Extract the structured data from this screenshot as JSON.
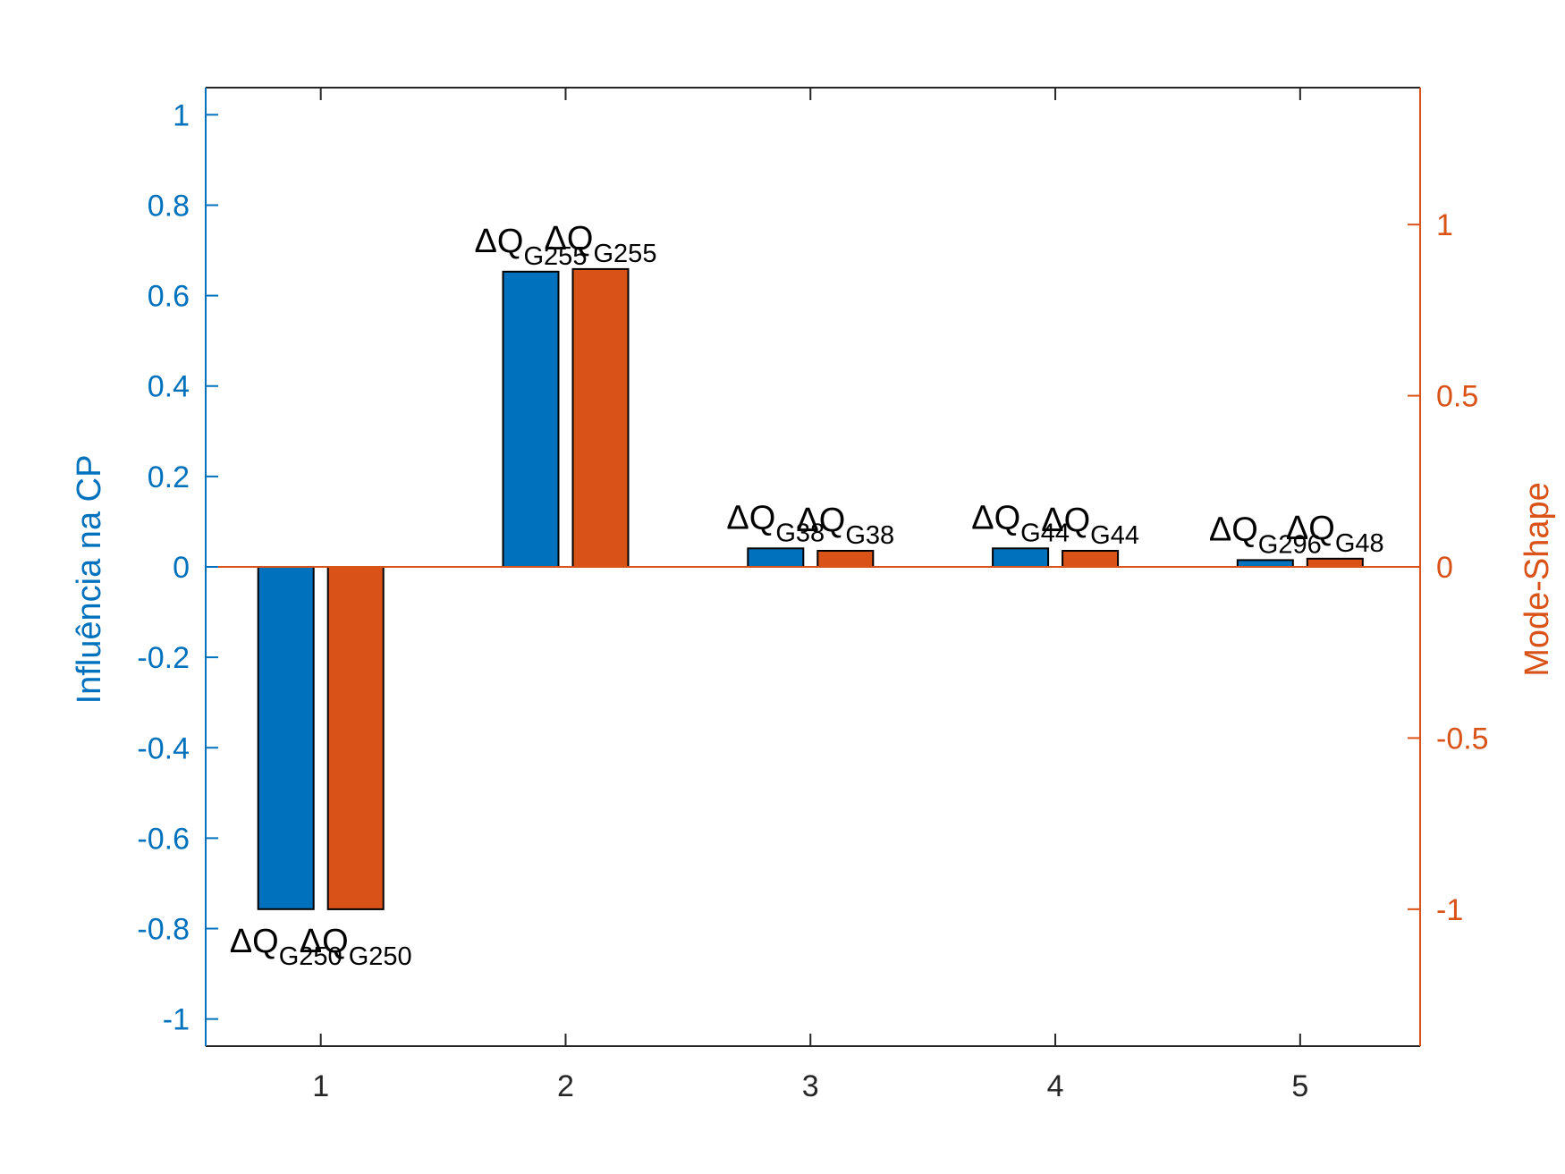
{
  "chart_data": {
    "type": "bar",
    "categories": [
      "1",
      "2",
      "3",
      "4",
      "5"
    ],
    "x": [
      1,
      2,
      3,
      4,
      5
    ],
    "xlim": [
      0.53,
      5.49
    ],
    "grid": false,
    "legend": "none",
    "left_axis": {
      "ylabel": "Influência na CP",
      "ylim": [
        -1.06,
        1.06
      ],
      "ticks": [
        -1,
        -0.8,
        -0.6,
        -0.4,
        -0.2,
        0,
        0.2,
        0.4,
        0.6,
        0.8,
        1
      ],
      "tick_labels": [
        "-1",
        "-0.8",
        "-0.6",
        "-0.4",
        "-0.2",
        "0",
        "0.2",
        "0.4",
        "0.6",
        "0.8",
        "1"
      ],
      "color": "#0072BD"
    },
    "right_axis": {
      "ylabel": "Mode-Shape",
      "ylim": [
        -1.4,
        1.4
      ],
      "ticks": [
        -1,
        -0.5,
        0,
        0.5,
        1
      ],
      "tick_labels": [
        "-1",
        "-0.5",
        "0",
        "0.5",
        "1"
      ],
      "color": "#D95319"
    },
    "series": [
      {
        "axis": "left",
        "color": "#0072BD",
        "values": [
          -0.757,
          0.653,
          0.041,
          0.041,
          0.015
        ],
        "labels": [
          {
            "main": "ΔQ",
            "sub": "G250"
          },
          {
            "main": "ΔQ",
            "sub": "G255"
          },
          {
            "main": "ΔQ",
            "sub": "G38"
          },
          {
            "main": "ΔQ",
            "sub": "G44"
          },
          {
            "main": "ΔQ",
            "sub": "G296"
          }
        ]
      },
      {
        "axis": "right",
        "color": "#D95319",
        "values": [
          -1.0,
          0.87,
          0.047,
          0.047,
          0.024
        ],
        "labels": [
          {
            "main": "ΔQ",
            "sub": "G250"
          },
          {
            "main": "ΔQ",
            "sub": "G255"
          },
          {
            "main": "ΔQ",
            "sub": "G38"
          },
          {
            "main": "ΔQ",
            "sub": "G44"
          },
          {
            "main": "ΔQ",
            "sub": "G48"
          }
        ]
      }
    ]
  }
}
